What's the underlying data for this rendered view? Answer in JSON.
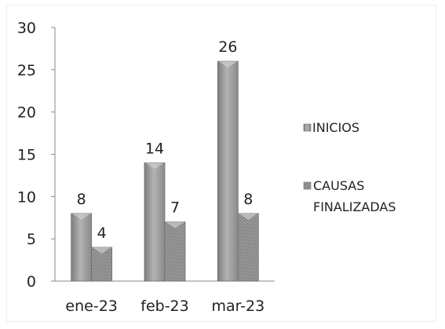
{
  "chart_data": {
    "type": "bar",
    "categories": [
      "ene-23",
      "feb-23",
      "mar-23"
    ],
    "series": [
      {
        "name": "INICIOS",
        "values": [
          8,
          14,
          26
        ],
        "color": "#9a9a9a"
      },
      {
        "name": "CAUSAS FINALIZADAS",
        "values": [
          4,
          7,
          8
        ],
        "color": "#8c8c8c"
      }
    ],
    "data_labels": true,
    "ylim": [
      0,
      30
    ],
    "yticks": [
      0,
      5,
      10,
      15,
      20,
      25,
      30
    ],
    "grid": false,
    "legend": {
      "position": "right",
      "entries": [
        {
          "label_lines": [
            "INICIOS"
          ]
        },
        {
          "label_lines": [
            "CAUSAS",
            "FINALIZADAS"
          ]
        }
      ]
    },
    "title": "",
    "xlabel": "",
    "ylabel": ""
  }
}
